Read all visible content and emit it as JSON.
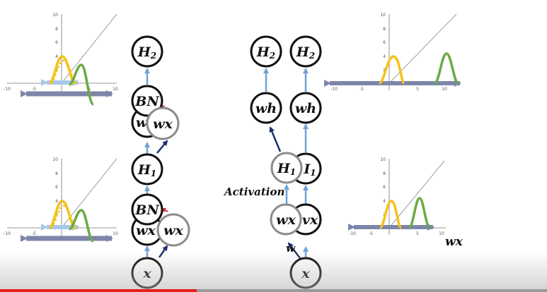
{
  "diagram": {
    "left_network": {
      "nodes": {
        "h2": {
          "base": "H",
          "sub": "2"
        },
        "bn_top": {
          "text": "BN"
        },
        "w_partial_top": {
          "text": "w"
        },
        "wx_top": {
          "text": "wx"
        },
        "h1": {
          "base": "H",
          "sub": "1"
        },
        "bn_bottom": {
          "text": "BN"
        },
        "wx_behind_bottom": {
          "text": "wx"
        },
        "wx_bottom": {
          "text": "wx"
        },
        "x": {
          "text": "x"
        }
      }
    },
    "right_network": {
      "nodes": {
        "h2_left": {
          "base": "H",
          "sub": "2"
        },
        "h2_right": {
          "base": "H",
          "sub": "2"
        },
        "wh_left": {
          "text": "wh"
        },
        "wh_right": {
          "text": "wh"
        },
        "h1_front": {
          "base": "H",
          "sub": "1"
        },
        "i1_behind": {
          "text": "I",
          "sub": "1"
        },
        "wx_front": {
          "text": "wx"
        },
        "vx_behind": {
          "text": "vx"
        },
        "x": {
          "text": "x"
        }
      },
      "labels": {
        "activation": "Activation",
        "w": "w",
        "wx_axis": "wx"
      }
    },
    "plots": {
      "top_left": {
        "y_ticks": [
          "10",
          "8",
          "6",
          "4",
          "2"
        ],
        "x_ticks": [
          "-10",
          "-5",
          "5",
          "10"
        ]
      },
      "bottom_left": {
        "y_ticks": [
          "10",
          "8",
          "6",
          "4",
          "2"
        ],
        "x_ticks": [
          "-10",
          "-5",
          "5",
          "10"
        ]
      },
      "top_right": {
        "y_ticks": [
          "10",
          "8",
          "6",
          "4",
          "2"
        ],
        "x_ticks": [
          "-10",
          "-5",
          "5",
          "10"
        ]
      },
      "bottom_right": {
        "y_ticks": [
          "10",
          "8",
          "6",
          "4",
          "2"
        ],
        "x_ticks": [
          "-10",
          "-5",
          "5",
          "10"
        ]
      }
    },
    "colors": {
      "yellow_curve": "#f5c21b",
      "green_curve": "#6aab45",
      "arrow_light": "#6fa3d6",
      "arrow_dark": "#1f2f6b",
      "arrow_red": "#d62828",
      "range_bar_dark": "#7d86a9",
      "range_bar_light": "#a8c8ea",
      "node_outline": "#111111",
      "node_outline_grey": "#8c8c8c"
    }
  },
  "player": {
    "progress_fraction": 0.36
  }
}
